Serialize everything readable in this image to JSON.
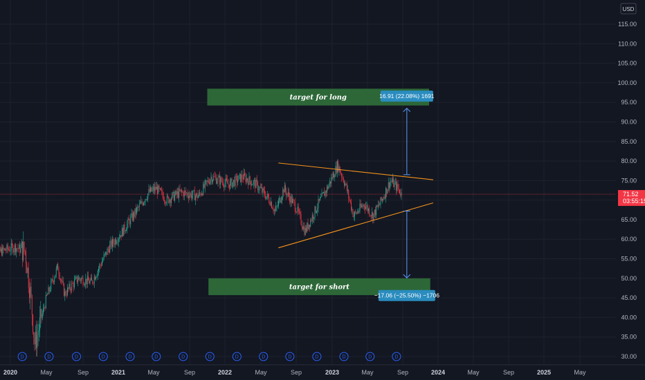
{
  "currency": "USD",
  "last_price": {
    "value": "71.52",
    "countdown": "03:55:15",
    "color": "#f23645"
  },
  "colors": {
    "background": "#131722",
    "grid": "#1e222d",
    "up": "#22ab94",
    "down": "#f23645",
    "trendline": "#f7931a",
    "zone": "#2e6b3a",
    "measure": "#5b9cf6",
    "measure_label": "#2a8cbf",
    "dividend": "#2962ff"
  },
  "annotations": {
    "long_zone": {
      "label": "target for long"
    },
    "short_zone": {
      "label": "target for short"
    },
    "long_measure": {
      "label": "16.91 (22.08%) 1691"
    },
    "short_measure": {
      "label": "−17.06 (−25.50%) −1706"
    }
  },
  "dividend_marker": "D",
  "chart_data": {
    "type": "candlestick",
    "title": "",
    "y_axis": {
      "ticks": [
        "30.00",
        "35.00",
        "40.00",
        "45.00",
        "50.00",
        "55.00",
        "60.00",
        "65.00",
        "70.00",
        "75.00",
        "80.00",
        "85.00",
        "90.00",
        "95.00",
        "100.00",
        "105.00",
        "110.00",
        "115.00"
      ],
      "range": [
        28,
        120
      ],
      "position": "right"
    },
    "x_axis": {
      "ticks": [
        {
          "label": "2020",
          "major": true
        },
        {
          "label": "May",
          "major": false
        },
        {
          "label": "Sep",
          "major": false
        },
        {
          "label": "2021",
          "major": true
        },
        {
          "label": "May",
          "major": false
        },
        {
          "label": "Sep",
          "major": false
        },
        {
          "label": "2022",
          "major": true
        },
        {
          "label": "May",
          "major": false
        },
        {
          "label": "Sep",
          "major": false
        },
        {
          "label": "2023",
          "major": true
        },
        {
          "label": "May",
          "major": false
        },
        {
          "label": "Sep",
          "major": false
        },
        {
          "label": "2024",
          "major": true
        },
        {
          "label": "May",
          "major": false
        },
        {
          "label": "Sep",
          "major": false
        },
        {
          "label": "2025",
          "major": true
        },
        {
          "label": "May",
          "major": false
        }
      ]
    },
    "price_path": [
      {
        "d": "2019-11-01",
        "p": 56
      },
      {
        "d": "2020-01-15",
        "p": 58
      },
      {
        "d": "2020-02-20",
        "p": 57
      },
      {
        "d": "2020-03-10",
        "p": 45
      },
      {
        "d": "2020-03-23",
        "p": 33
      },
      {
        "d": "2020-04-15",
        "p": 40
      },
      {
        "d": "2020-05-01",
        "p": 45
      },
      {
        "d": "2020-06-08",
        "p": 53
      },
      {
        "d": "2020-07-01",
        "p": 46
      },
      {
        "d": "2020-08-15",
        "p": 50
      },
      {
        "d": "2020-10-01",
        "p": 49
      },
      {
        "d": "2020-11-10",
        "p": 55
      },
      {
        "d": "2020-12-01",
        "p": 58
      },
      {
        "d": "2021-01-15",
        "p": 62
      },
      {
        "d": "2021-03-01",
        "p": 67
      },
      {
        "d": "2021-04-15",
        "p": 72
      },
      {
        "d": "2021-05-10",
        "p": 73
      },
      {
        "d": "2021-06-15",
        "p": 70
      },
      {
        "d": "2021-08-01",
        "p": 72
      },
      {
        "d": "2021-10-01",
        "p": 71
      },
      {
        "d": "2021-11-15",
        "p": 76
      },
      {
        "d": "2022-01-15",
        "p": 74
      },
      {
        "d": "2022-03-01",
        "p": 76
      },
      {
        "d": "2022-04-15",
        "p": 74
      },
      {
        "d": "2022-06-01",
        "p": 70
      },
      {
        "d": "2022-06-20",
        "p": 67
      },
      {
        "d": "2022-07-20",
        "p": 73
      },
      {
        "d": "2022-09-01",
        "p": 68
      },
      {
        "d": "2022-10-01",
        "p": 62
      },
      {
        "d": "2022-11-15",
        "p": 69
      },
      {
        "d": "2022-12-15",
        "p": 73
      },
      {
        "d": "2023-01-20",
        "p": 79
      },
      {
        "d": "2023-02-15",
        "p": 74
      },
      {
        "d": "2023-03-15",
        "p": 66
      },
      {
        "d": "2023-04-20",
        "p": 69
      },
      {
        "d": "2023-05-20",
        "p": 66
      },
      {
        "d": "2023-06-20",
        "p": 70
      },
      {
        "d": "2023-07-20",
        "p": 75
      },
      {
        "d": "2023-08-15",
        "p": 73
      },
      {
        "d": "2023-08-28",
        "p": 71.5
      }
    ],
    "trendlines": [
      {
        "name": "upper",
        "from": {
          "d": "2022-07-01",
          "p": 79.5
        },
        "to": {
          "d": "2023-12-15",
          "p": 75.2
        }
      },
      {
        "name": "lower",
        "from": {
          "d": "2022-07-01",
          "p": 57.8
        },
        "to": {
          "d": "2023-12-15",
          "p": 69.3
        }
      }
    ],
    "zones": [
      {
        "name": "long target",
        "from_date": "2021-11-01",
        "to_date": "2023-12-01",
        "from_price": 94.2,
        "to_price": 98.5
      },
      {
        "name": "short target",
        "from_date": "2021-11-05",
        "to_date": "2023-12-05",
        "from_price": 45.7,
        "to_price": 50.0
      }
    ],
    "measures": [
      {
        "name": "long",
        "date": "2023-09-15",
        "from_price": 76.5,
        "to_price": 93.5,
        "label_price": 96.6
      },
      {
        "name": "short",
        "date": "2023-09-15",
        "from_price": 67.2,
        "to_price": 50.1,
        "label_price": 45.6
      }
    ],
    "last_price_line": 71.52,
    "dividend_dates": [
      "2019-11-08",
      "2020-02-10",
      "2020-05-10",
      "2020-08-10",
      "2020-11-10",
      "2021-02-10",
      "2021-05-10",
      "2021-08-10",
      "2021-11-10",
      "2022-02-10",
      "2022-05-10",
      "2022-08-10",
      "2022-11-10",
      "2023-02-10",
      "2023-05-10",
      "2023-08-10"
    ]
  }
}
